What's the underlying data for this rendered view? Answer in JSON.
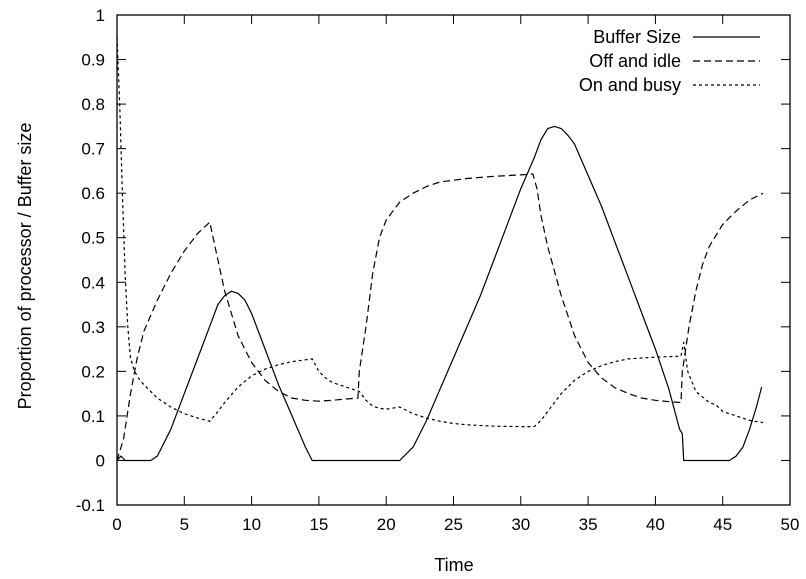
{
  "chart_data": {
    "type": "line",
    "title": "",
    "xlabel": "Time",
    "ylabel": "Proportion of processor / Buffer size",
    "xlim": [
      0,
      50
    ],
    "ylim": [
      -0.1,
      1
    ],
    "xticks": [
      "0",
      "5",
      "10",
      "15",
      "20",
      "25",
      "30",
      "35",
      "40",
      "45",
      "50"
    ],
    "yticks": [
      "-0.1",
      "0",
      "0.1",
      "0.2",
      "0.3",
      "0.4",
      "0.5",
      "0.6",
      "0.7",
      "0.8",
      "0.9",
      "1"
    ],
    "grid": false,
    "legend_position": "top-right",
    "series": [
      {
        "name": "Buffer Size",
        "style": "solid",
        "points": [
          [
            0,
            0.0
          ],
          [
            0.3,
            0.01
          ],
          [
            0.6,
            0.0
          ],
          [
            1.5,
            0.0
          ],
          [
            2.5,
            0.0
          ],
          [
            3.0,
            0.01
          ],
          [
            4.0,
            0.07
          ],
          [
            5.0,
            0.15
          ],
          [
            6.0,
            0.23
          ],
          [
            7.0,
            0.31
          ],
          [
            7.5,
            0.35
          ],
          [
            8.0,
            0.37
          ],
          [
            8.5,
            0.38
          ],
          [
            9.0,
            0.375
          ],
          [
            9.5,
            0.36
          ],
          [
            10.0,
            0.33
          ],
          [
            11.0,
            0.25
          ],
          [
            12.0,
            0.17
          ],
          [
            13.0,
            0.1
          ],
          [
            14.0,
            0.03
          ],
          [
            14.5,
            0.0
          ],
          [
            16.0,
            0.0
          ],
          [
            18.0,
            0.0
          ],
          [
            20.0,
            0.0
          ],
          [
            21.0,
            0.0
          ],
          [
            22.0,
            0.03
          ],
          [
            23.0,
            0.09
          ],
          [
            24.0,
            0.16
          ],
          [
            25.0,
            0.23
          ],
          [
            26.0,
            0.3
          ],
          [
            27.0,
            0.37
          ],
          [
            28.0,
            0.45
          ],
          [
            29.0,
            0.53
          ],
          [
            30.0,
            0.61
          ],
          [
            31.0,
            0.68
          ],
          [
            31.5,
            0.72
          ],
          [
            32.0,
            0.745
          ],
          [
            32.5,
            0.75
          ],
          [
            33.0,
            0.745
          ],
          [
            33.5,
            0.73
          ],
          [
            34.0,
            0.71
          ],
          [
            35.0,
            0.64
          ],
          [
            36.0,
            0.57
          ],
          [
            37.0,
            0.49
          ],
          [
            38.0,
            0.41
          ],
          [
            39.0,
            0.33
          ],
          [
            40.0,
            0.25
          ],
          [
            41.0,
            0.16
          ],
          [
            41.8,
            0.07
          ],
          [
            42.0,
            0.06
          ],
          [
            42.1,
            0.0
          ],
          [
            43.0,
            0.0
          ],
          [
            44.0,
            0.0
          ],
          [
            45.0,
            0.0
          ],
          [
            45.5,
            0.0
          ],
          [
            46.0,
            0.01
          ],
          [
            46.5,
            0.03
          ],
          [
            47.0,
            0.07
          ],
          [
            47.5,
            0.12
          ],
          [
            47.9,
            0.165
          ]
        ]
      },
      {
        "name": "Off and idle",
        "style": "dashed",
        "points": [
          [
            0,
            0.0
          ],
          [
            0.5,
            0.05
          ],
          [
            1.0,
            0.15
          ],
          [
            1.5,
            0.23
          ],
          [
            2.0,
            0.29
          ],
          [
            3.0,
            0.36
          ],
          [
            4.0,
            0.42
          ],
          [
            5.0,
            0.47
          ],
          [
            6.0,
            0.51
          ],
          [
            6.9,
            0.535
          ],
          [
            7.0,
            0.52
          ],
          [
            7.5,
            0.45
          ],
          [
            8.0,
            0.38
          ],
          [
            9.0,
            0.28
          ],
          [
            10.0,
            0.22
          ],
          [
            11.0,
            0.18
          ],
          [
            12.0,
            0.155
          ],
          [
            13.0,
            0.14
          ],
          [
            14.0,
            0.135
          ],
          [
            15.0,
            0.133
          ],
          [
            16.0,
            0.135
          ],
          [
            17.0,
            0.138
          ],
          [
            17.9,
            0.14
          ],
          [
            18.0,
            0.2
          ],
          [
            18.5,
            0.3
          ],
          [
            19.0,
            0.42
          ],
          [
            19.5,
            0.5
          ],
          [
            20.0,
            0.54
          ],
          [
            21.0,
            0.58
          ],
          [
            22.0,
            0.6
          ],
          [
            23.0,
            0.615
          ],
          [
            24.0,
            0.625
          ],
          [
            26.0,
            0.633
          ],
          [
            28.0,
            0.638
          ],
          [
            30.0,
            0.641
          ],
          [
            30.9,
            0.643
          ],
          [
            31.2,
            0.61
          ],
          [
            31.5,
            0.55
          ],
          [
            32.0,
            0.48
          ],
          [
            33.0,
            0.37
          ],
          [
            34.0,
            0.28
          ],
          [
            35.0,
            0.22
          ],
          [
            36.0,
            0.185
          ],
          [
            37.0,
            0.163
          ],
          [
            38.0,
            0.15
          ],
          [
            39.0,
            0.14
          ],
          [
            40.0,
            0.135
          ],
          [
            41.0,
            0.132
          ],
          [
            41.9,
            0.13
          ],
          [
            42.0,
            0.2
          ],
          [
            42.5,
            0.3
          ],
          [
            43.0,
            0.38
          ],
          [
            43.5,
            0.44
          ],
          [
            44.0,
            0.48
          ],
          [
            45.0,
            0.53
          ],
          [
            46.0,
            0.56
          ],
          [
            47.0,
            0.585
          ],
          [
            48.0,
            0.6
          ]
        ]
      },
      {
        "name": "On and busy",
        "style": "dotted",
        "points": [
          [
            0,
            0.95
          ],
          [
            0.2,
            0.8
          ],
          [
            0.4,
            0.6
          ],
          [
            0.6,
            0.42
          ],
          [
            0.8,
            0.3
          ],
          [
            1.0,
            0.23
          ],
          [
            1.3,
            0.2
          ],
          [
            1.7,
            0.18
          ],
          [
            2.0,
            0.17
          ],
          [
            3.0,
            0.14
          ],
          [
            4.0,
            0.12
          ],
          [
            5.0,
            0.105
          ],
          [
            6.0,
            0.095
          ],
          [
            6.9,
            0.088
          ],
          [
            7.0,
            0.092
          ],
          [
            7.5,
            0.11
          ],
          [
            8.0,
            0.13
          ],
          [
            9.0,
            0.165
          ],
          [
            10.0,
            0.19
          ],
          [
            11.0,
            0.205
          ],
          [
            12.0,
            0.215
          ],
          [
            13.0,
            0.222
          ],
          [
            14.0,
            0.226
          ],
          [
            14.5,
            0.228
          ],
          [
            15.0,
            0.2
          ],
          [
            15.5,
            0.185
          ],
          [
            16.0,
            0.175
          ],
          [
            17.0,
            0.165
          ],
          [
            18.0,
            0.155
          ],
          [
            18.5,
            0.135
          ],
          [
            19.0,
            0.122
          ],
          [
            19.5,
            0.117
          ],
          [
            20.0,
            0.115
          ],
          [
            21.0,
            0.12
          ],
          [
            22.0,
            0.105
          ],
          [
            23.0,
            0.095
          ],
          [
            24.0,
            0.088
          ],
          [
            25.0,
            0.083
          ],
          [
            26.0,
            0.08
          ],
          [
            28.0,
            0.077
          ],
          [
            30.0,
            0.076
          ],
          [
            31.0,
            0.076
          ],
          [
            31.5,
            0.09
          ],
          [
            32.0,
            0.11
          ],
          [
            33.0,
            0.15
          ],
          [
            34.0,
            0.18
          ],
          [
            35.0,
            0.2
          ],
          [
            36.0,
            0.213
          ],
          [
            37.0,
            0.222
          ],
          [
            38.0,
            0.228
          ],
          [
            40.0,
            0.232
          ],
          [
            41.9,
            0.234
          ],
          [
            42.1,
            0.265
          ],
          [
            42.4,
            0.2
          ],
          [
            43.0,
            0.155
          ],
          [
            44.0,
            0.13
          ],
          [
            44.5,
            0.125
          ],
          [
            45.0,
            0.11
          ],
          [
            46.0,
            0.1
          ],
          [
            47.0,
            0.09
          ],
          [
            48.0,
            0.085
          ]
        ]
      }
    ]
  }
}
